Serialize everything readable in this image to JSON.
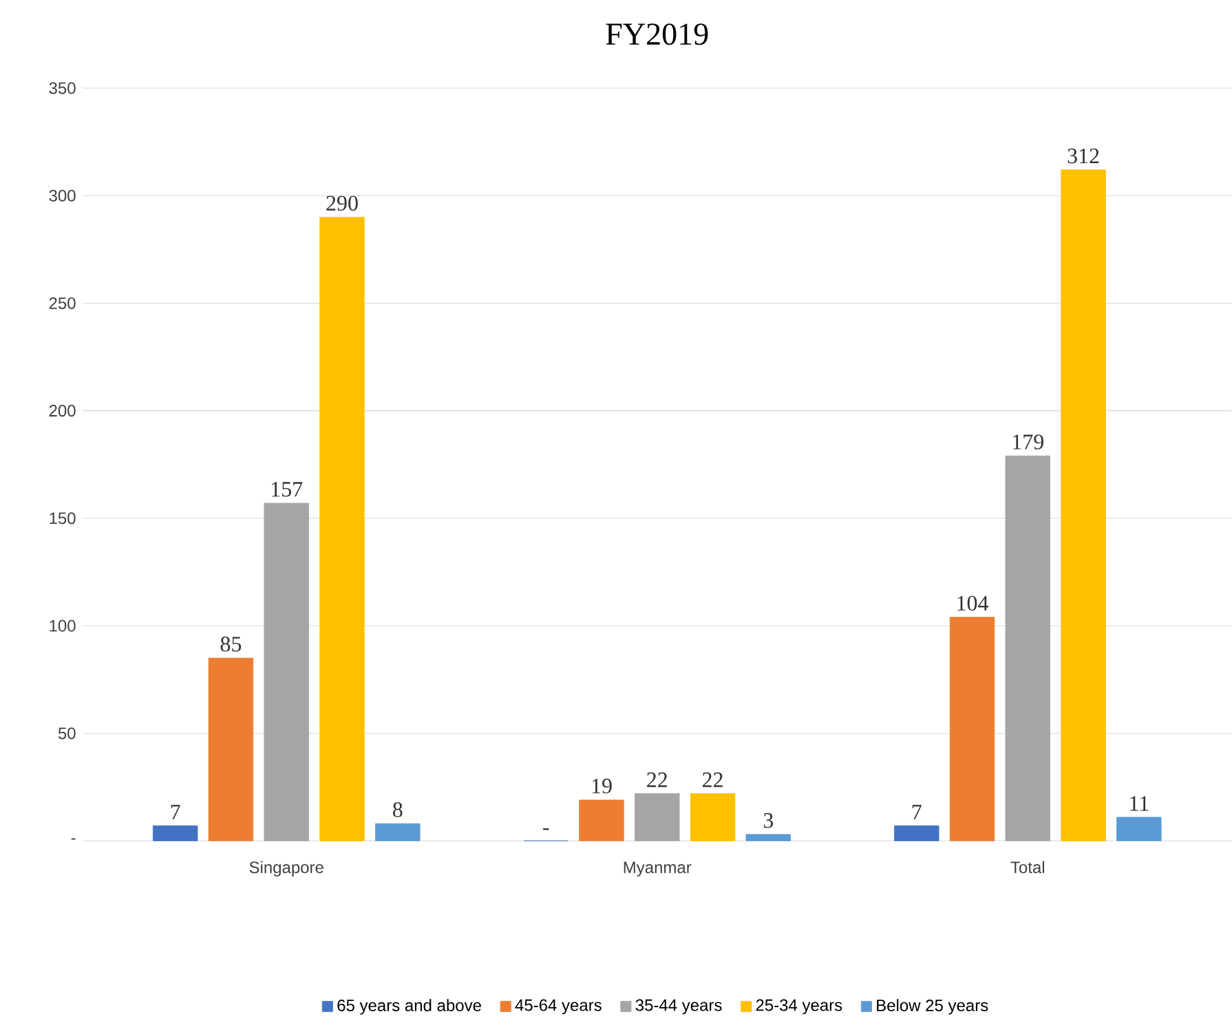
{
  "chart_data": {
    "type": "bar",
    "title": "FY2019",
    "categories": [
      "Singapore",
      "Myanmar",
      "Total"
    ],
    "series": [
      {
        "name": "65 years and above",
        "color": "#4472c4",
        "values": [
          7,
          0,
          7
        ],
        "value_labels": [
          "7",
          "-",
          "7"
        ]
      },
      {
        "name": "45-64 years",
        "color": "#ed7d31",
        "values": [
          85,
          19,
          104
        ],
        "value_labels": [
          "85",
          "19",
          "104"
        ]
      },
      {
        "name": "35-44 years",
        "color": "#a5a5a5",
        "values": [
          157,
          22,
          179
        ],
        "value_labels": [
          "157",
          "22",
          "179"
        ]
      },
      {
        "name": "25-34 years",
        "color": "#ffc000",
        "values": [
          290,
          22,
          312
        ],
        "value_labels": [
          "290",
          "22",
          "312"
        ]
      },
      {
        "name": "Below 25 years",
        "color": "#5b9bd5",
        "values": [
          8,
          3,
          11
        ],
        "value_labels": [
          "8",
          "3",
          "11"
        ]
      }
    ],
    "ylim": [
      0,
      350
    ],
    "yticks": [
      {
        "value": 0,
        "label": "-"
      },
      50,
      100,
      150,
      200,
      250,
      300,
      350
    ],
    "grid": "y",
    "legend": "bottom"
  }
}
